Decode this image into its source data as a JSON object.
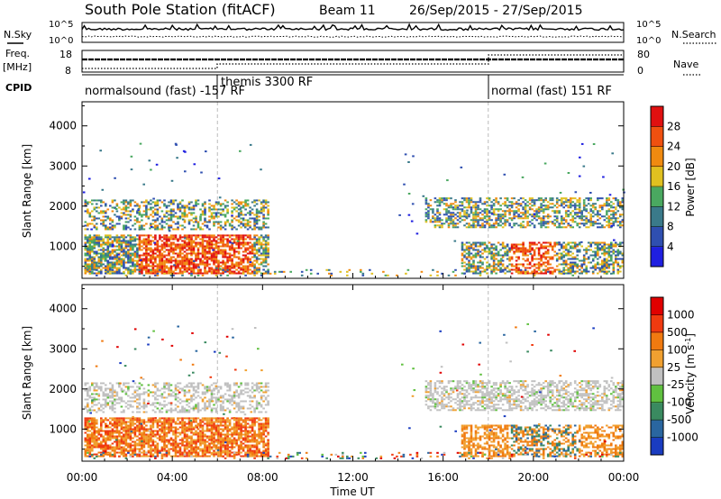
{
  "header": {
    "station": "South Pole Station (fitACF)",
    "beam": "Beam 11",
    "date_range": "26/Sep/2015 - 27/Sep/2015"
  },
  "top_panels": {
    "nsky_label": "N.Sky",
    "nsearch_label": "N.Search",
    "noise_ticks": [
      "10^5",
      "10^0"
    ],
    "freq_label": "Freq.",
    "freq_unit": "[MHz]",
    "freq_ticks": [
      "18",
      "8"
    ],
    "nave_label": "Nave",
    "nave_ticks": [
      "80",
      "0"
    ],
    "cpid_label": "CPID",
    "cpid_segments": [
      {
        "label": "normalsound (fast) -157 RF",
        "start_hour": 0,
        "end_hour": 6
      },
      {
        "label": "themis 3300 RF",
        "start_hour": 6,
        "end_hour": 18
      },
      {
        "label": "normal (fast) 151 RF",
        "start_hour": 18,
        "end_hour": 24
      }
    ]
  },
  "chart_data": [
    {
      "type": "heatmap",
      "name": "power",
      "ylabel": "Slant Range [km]",
      "yticks": [
        1000,
        2000,
        3000,
        4000
      ],
      "ylim": [
        200,
        4600
      ],
      "colorbar_label": "Power [dB]",
      "colorbar_ticks": [
        "28",
        "24",
        "20",
        "16",
        "12",
        "8",
        "4"
      ],
      "colors": [
        "#1f1fe0",
        "#2f4fb0",
        "#3a7a8a",
        "#4aa860",
        "#e0c020",
        "#f08a10",
        "#f05010",
        "#e01010"
      ]
    },
    {
      "type": "heatmap",
      "name": "velocity",
      "ylabel": "Slant Range [km]",
      "yticks": [
        1000,
        2000,
        3000,
        4000
      ],
      "ylim": [
        200,
        4600
      ],
      "colorbar_label": "Velocity [m s^-1]",
      "colorbar_ticks": [
        "1000",
        "500",
        "100",
        "25",
        "-25",
        "-100",
        "-500",
        "-1000"
      ],
      "colors": [
        "#1a3cc0",
        "#2a66a0",
        "#3a8a60",
        "#60c040",
        "#c0c0c0",
        "#f0a030",
        "#f07a10",
        "#f03a10",
        "#e00000"
      ]
    }
  ],
  "time_axis": {
    "xlabel": "Time UT",
    "ticks": [
      "00:00",
      "04:00",
      "08:00",
      "12:00",
      "16:00",
      "20:00",
      "00:00"
    ]
  }
}
